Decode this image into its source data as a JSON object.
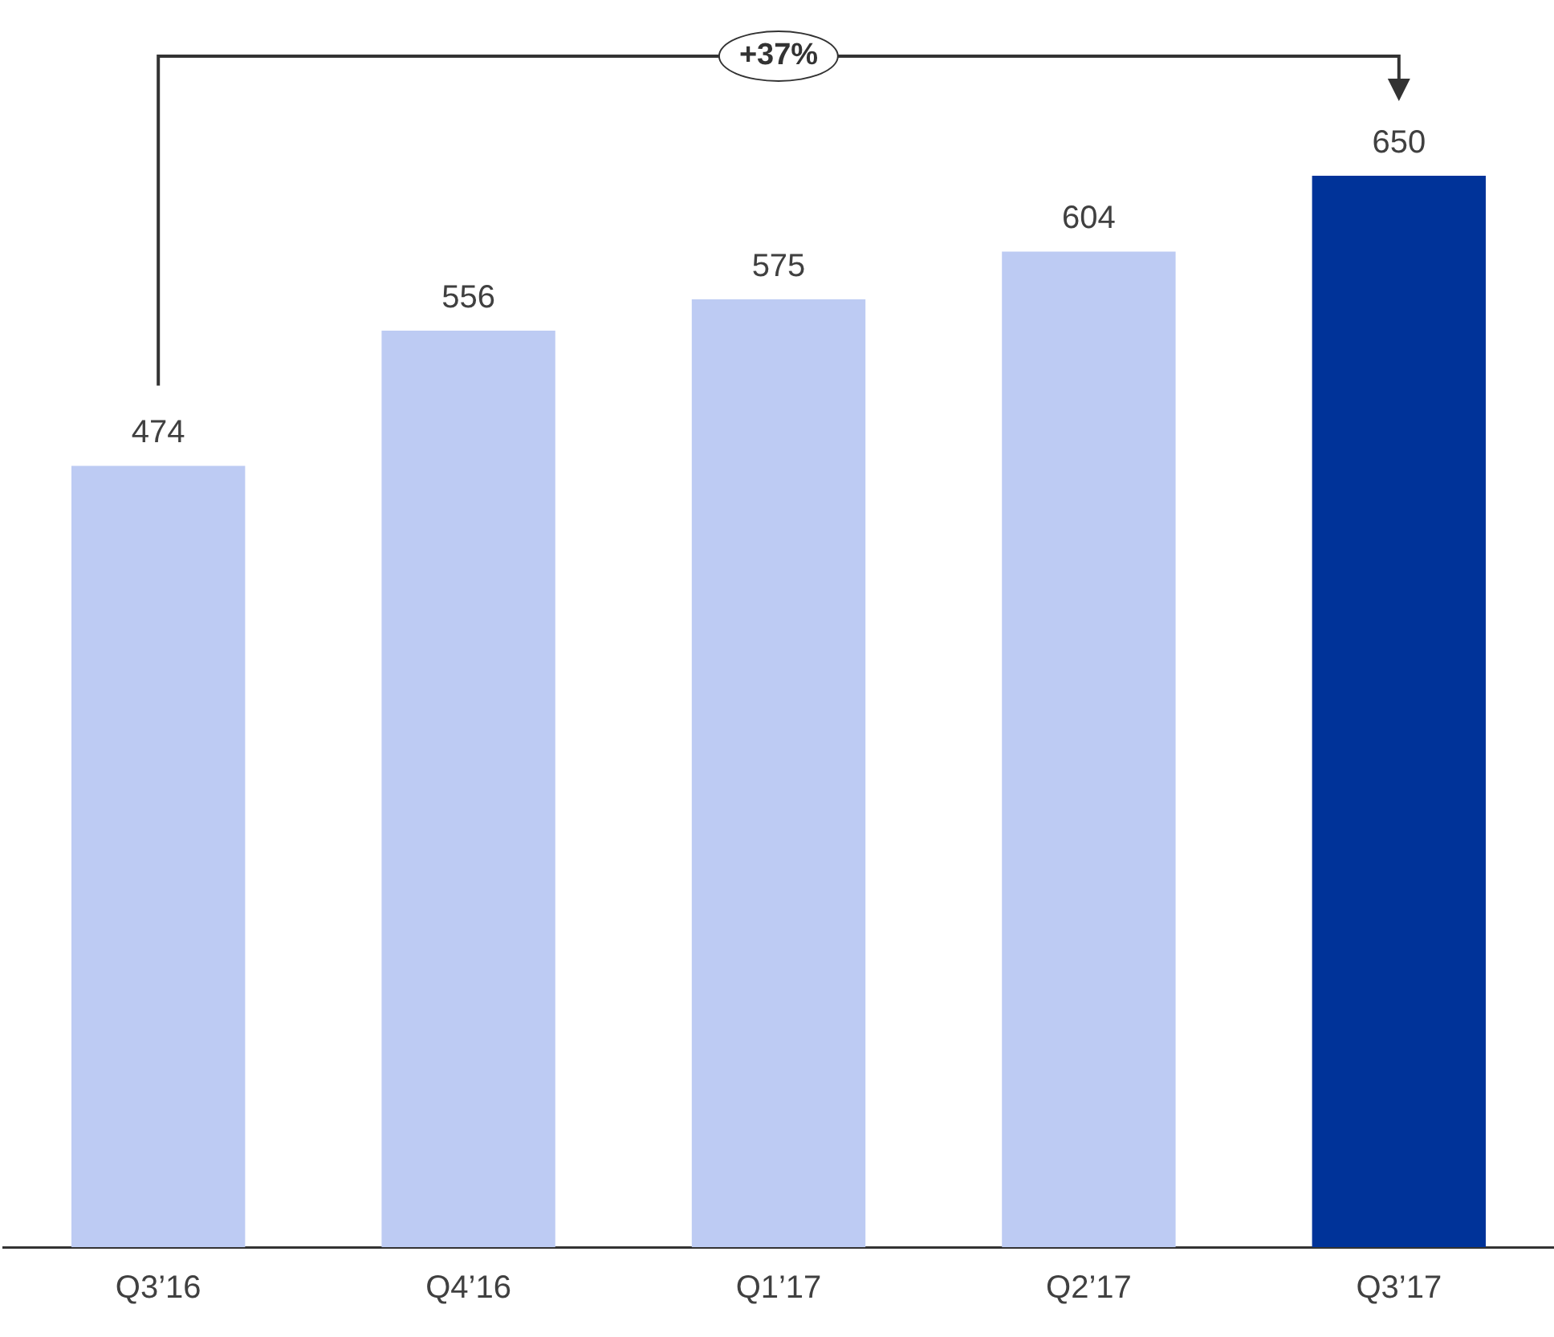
{
  "chart_data": {
    "type": "bar",
    "categories": [
      "Q3’16",
      "Q4’16",
      "Q1’17",
      "Q2’17",
      "Q3’17"
    ],
    "values": [
      474,
      556,
      575,
      604,
      650
    ],
    "colors": [
      "#bdcbf3",
      "#bdcbf3",
      "#bdcbf3",
      "#bdcbf3",
      "#003399"
    ],
    "data_labels": true,
    "grid": false,
    "legend": false,
    "annotations": [
      "+37%"
    ]
  }
}
